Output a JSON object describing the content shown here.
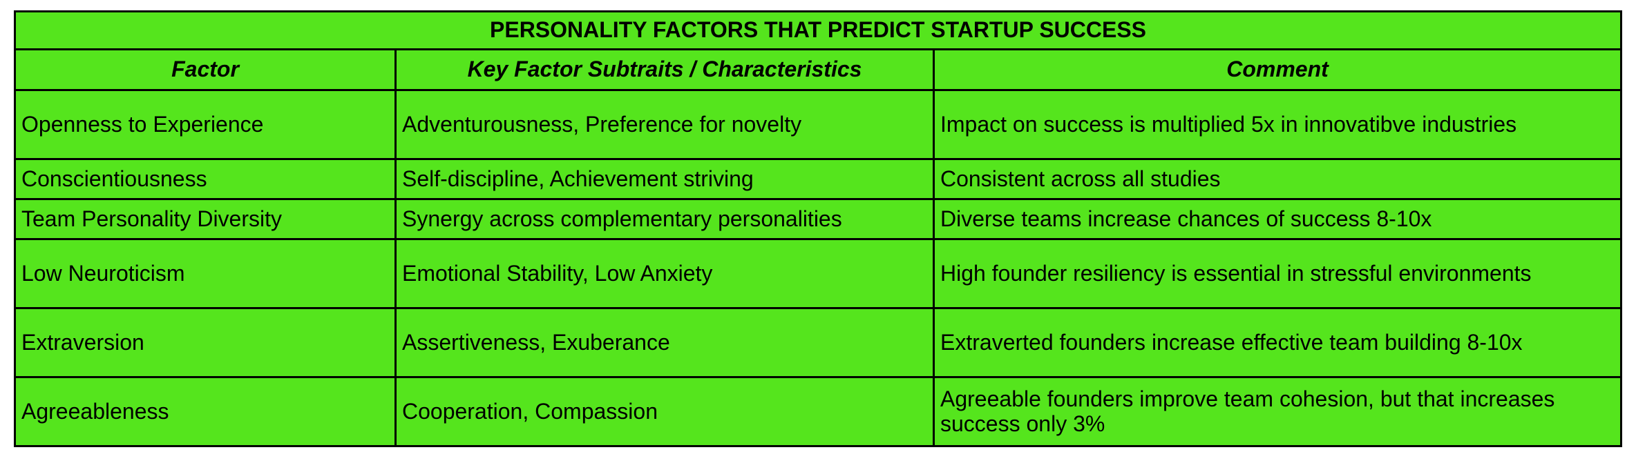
{
  "table": {
    "title": "PERSONALITY FACTORS THAT PREDICT STARTUP SUCCESS",
    "columns": [
      "Factor",
      "Key Factor Subtraits / Characteristics",
      "Comment"
    ],
    "rows": [
      [
        "Openness to Experience",
        "Adventurousness, Preference for novelty",
        "Impact on success is multiplied 5x in innovatibve industries"
      ],
      [
        "Conscientiousness",
        "Self-discipline, Achievement striving",
        "Consistent across all studies"
      ],
      [
        "Team Personality Diversity",
        "Synergy across complementary personalities",
        "Diverse teams increase chances of success 8-10x"
      ],
      [
        "Low Neuroticism",
        "Emotional Stability, Low Anxiety",
        "High founder resiliency is essential in stressful environments"
      ],
      [
        "Extraversion",
        "Assertiveness, Exuberance",
        "Extraverted founders increase effective team building 8-10x"
      ],
      [
        "Agreeableness",
        "Cooperation, Compassion",
        "Agreeable founders improve team cohesion, but that increases success only 3%"
      ]
    ]
  }
}
